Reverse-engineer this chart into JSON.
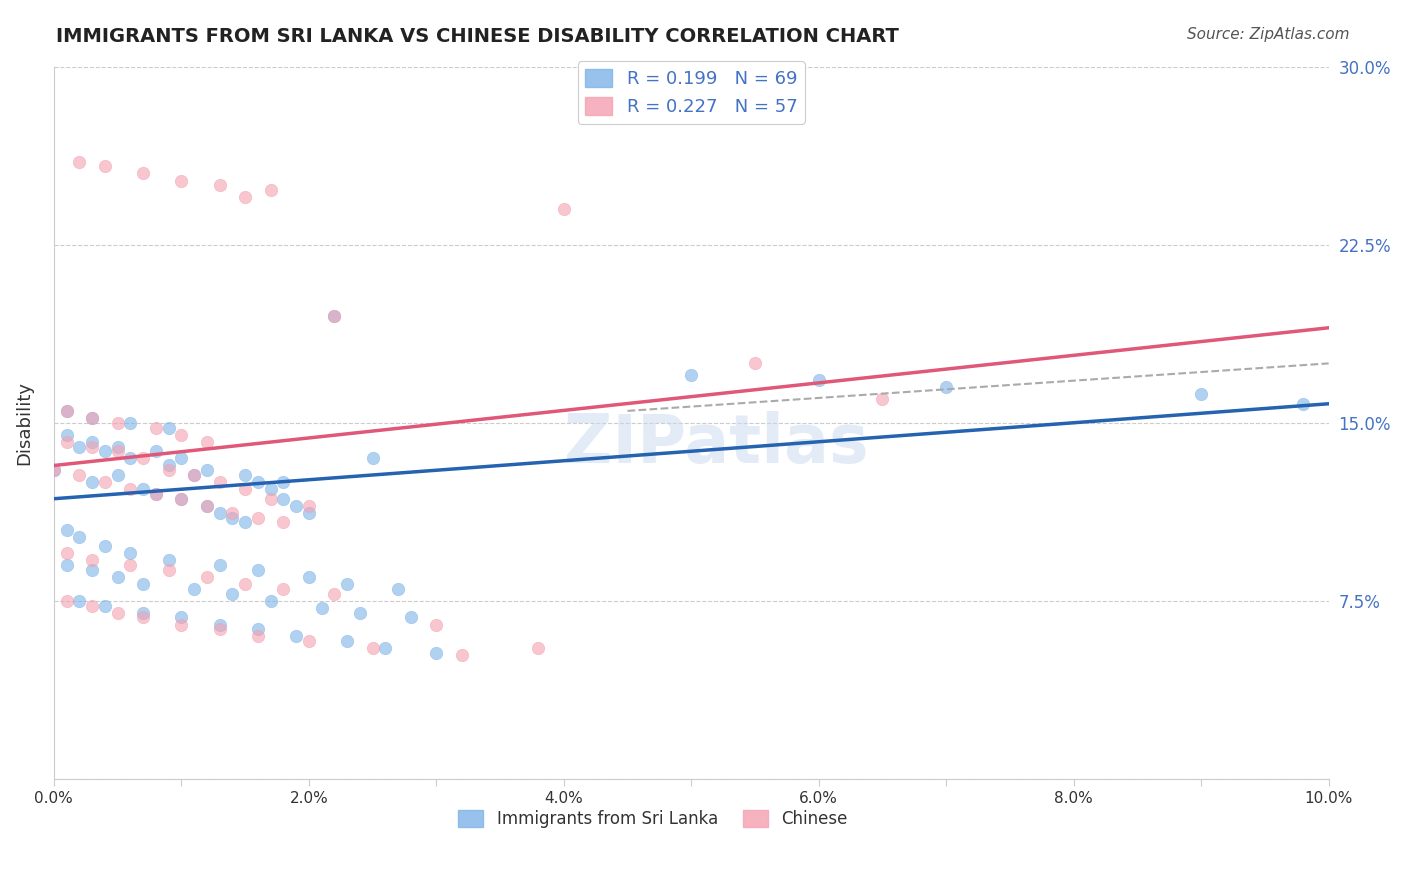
{
  "title": "IMMIGRANTS FROM SRI LANKA VS CHINESE DISABILITY CORRELATION CHART",
  "source_text": "Source: ZipAtlas.com",
  "ylabel": "Disability",
  "watermark": "ZIPatlas",
  "legend_entries": [
    {
      "label": "R = 0.199   N = 69",
      "color": "#7eb3e8"
    },
    {
      "label": "R = 0.227   N = 57",
      "color": "#f4a0b0"
    }
  ],
  "legend_label_blue": "Immigrants from Sri Lanka",
  "legend_label_pink": "Chinese",
  "xlim": [
    0.0,
    0.1
  ],
  "ylim": [
    0.0,
    0.3
  ],
  "xtick_positions": [
    0.0,
    0.01,
    0.02,
    0.03,
    0.04,
    0.05,
    0.06,
    0.07,
    0.08,
    0.09,
    0.1
  ],
  "xtick_labels": [
    "0.0%",
    "",
    "2.0%",
    "",
    "4.0%",
    "",
    "6.0%",
    "",
    "8.0%",
    "",
    "10.0%"
  ],
  "ytick_values": [
    0.0,
    0.075,
    0.15,
    0.225,
    0.3
  ],
  "ytick_labels": [
    "",
    "7.5%",
    "15.0%",
    "22.5%",
    "30.0%"
  ],
  "grid_color": "#cccccc",
  "background_color": "#ffffff",
  "scatter_blue_color": "#7eb3e8",
  "scatter_pink_color": "#f4a0b0",
  "line_blue_color": "#2563b0",
  "line_pink_color": "#e05878",
  "line_dashed_color": "#aaaaaa",
  "sri_lanka_x": [
    0.0,
    0.003,
    0.005,
    0.007,
    0.008,
    0.01,
    0.012,
    0.013,
    0.014,
    0.015,
    0.002,
    0.004,
    0.006,
    0.009,
    0.011,
    0.016,
    0.017,
    0.018,
    0.019,
    0.02,
    0.001,
    0.003,
    0.005,
    0.008,
    0.01,
    0.012,
    0.015,
    0.018,
    0.022,
    0.025,
    0.001,
    0.002,
    0.004,
    0.006,
    0.009,
    0.013,
    0.016,
    0.02,
    0.023,
    0.027,
    0.001,
    0.003,
    0.005,
    0.007,
    0.011,
    0.014,
    0.017,
    0.021,
    0.024,
    0.028,
    0.002,
    0.004,
    0.007,
    0.01,
    0.013,
    0.016,
    0.019,
    0.023,
    0.026,
    0.03,
    0.001,
    0.003,
    0.006,
    0.009,
    0.05,
    0.06,
    0.07,
    0.09,
    0.098
  ],
  "sri_lanka_y": [
    0.13,
    0.125,
    0.128,
    0.122,
    0.12,
    0.118,
    0.115,
    0.112,
    0.11,
    0.108,
    0.14,
    0.138,
    0.135,
    0.132,
    0.128,
    0.125,
    0.122,
    0.118,
    0.115,
    0.112,
    0.145,
    0.142,
    0.14,
    0.138,
    0.135,
    0.13,
    0.128,
    0.125,
    0.195,
    0.135,
    0.105,
    0.102,
    0.098,
    0.095,
    0.092,
    0.09,
    0.088,
    0.085,
    0.082,
    0.08,
    0.09,
    0.088,
    0.085,
    0.082,
    0.08,
    0.078,
    0.075,
    0.072,
    0.07,
    0.068,
    0.075,
    0.073,
    0.07,
    0.068,
    0.065,
    0.063,
    0.06,
    0.058,
    0.055,
    0.053,
    0.155,
    0.152,
    0.15,
    0.148,
    0.17,
    0.168,
    0.165,
    0.162,
    0.158
  ],
  "chinese_x": [
    0.0,
    0.002,
    0.004,
    0.006,
    0.008,
    0.01,
    0.012,
    0.014,
    0.016,
    0.018,
    0.001,
    0.003,
    0.005,
    0.007,
    0.009,
    0.011,
    0.013,
    0.015,
    0.017,
    0.02,
    0.001,
    0.003,
    0.005,
    0.008,
    0.01,
    0.012,
    0.015,
    0.04,
    0.055,
    0.065,
    0.001,
    0.003,
    0.006,
    0.009,
    0.012,
    0.015,
    0.018,
    0.022,
    0.03,
    0.038,
    0.001,
    0.003,
    0.005,
    0.007,
    0.01,
    0.013,
    0.016,
    0.02,
    0.025,
    0.032,
    0.002,
    0.004,
    0.007,
    0.01,
    0.013,
    0.017,
    0.022
  ],
  "chinese_y": [
    0.13,
    0.128,
    0.125,
    0.122,
    0.12,
    0.118,
    0.115,
    0.112,
    0.11,
    0.108,
    0.142,
    0.14,
    0.138,
    0.135,
    0.13,
    0.128,
    0.125,
    0.122,
    0.118,
    0.115,
    0.155,
    0.152,
    0.15,
    0.148,
    0.145,
    0.142,
    0.245,
    0.24,
    0.175,
    0.16,
    0.095,
    0.092,
    0.09,
    0.088,
    0.085,
    0.082,
    0.08,
    0.078,
    0.065,
    0.055,
    0.075,
    0.073,
    0.07,
    0.068,
    0.065,
    0.063,
    0.06,
    0.058,
    0.055,
    0.052,
    0.26,
    0.258,
    0.255,
    0.252,
    0.25,
    0.248,
    0.195
  ],
  "sri_lanka_line_x": [
    0.0,
    0.1
  ],
  "sri_lanka_line_y": [
    0.118,
    0.158
  ],
  "chinese_line_x": [
    0.0,
    0.1
  ],
  "chinese_line_y": [
    0.132,
    0.19
  ],
  "dashed_line_x": [
    0.045,
    0.1
  ],
  "dashed_line_y": [
    0.155,
    0.175
  ]
}
